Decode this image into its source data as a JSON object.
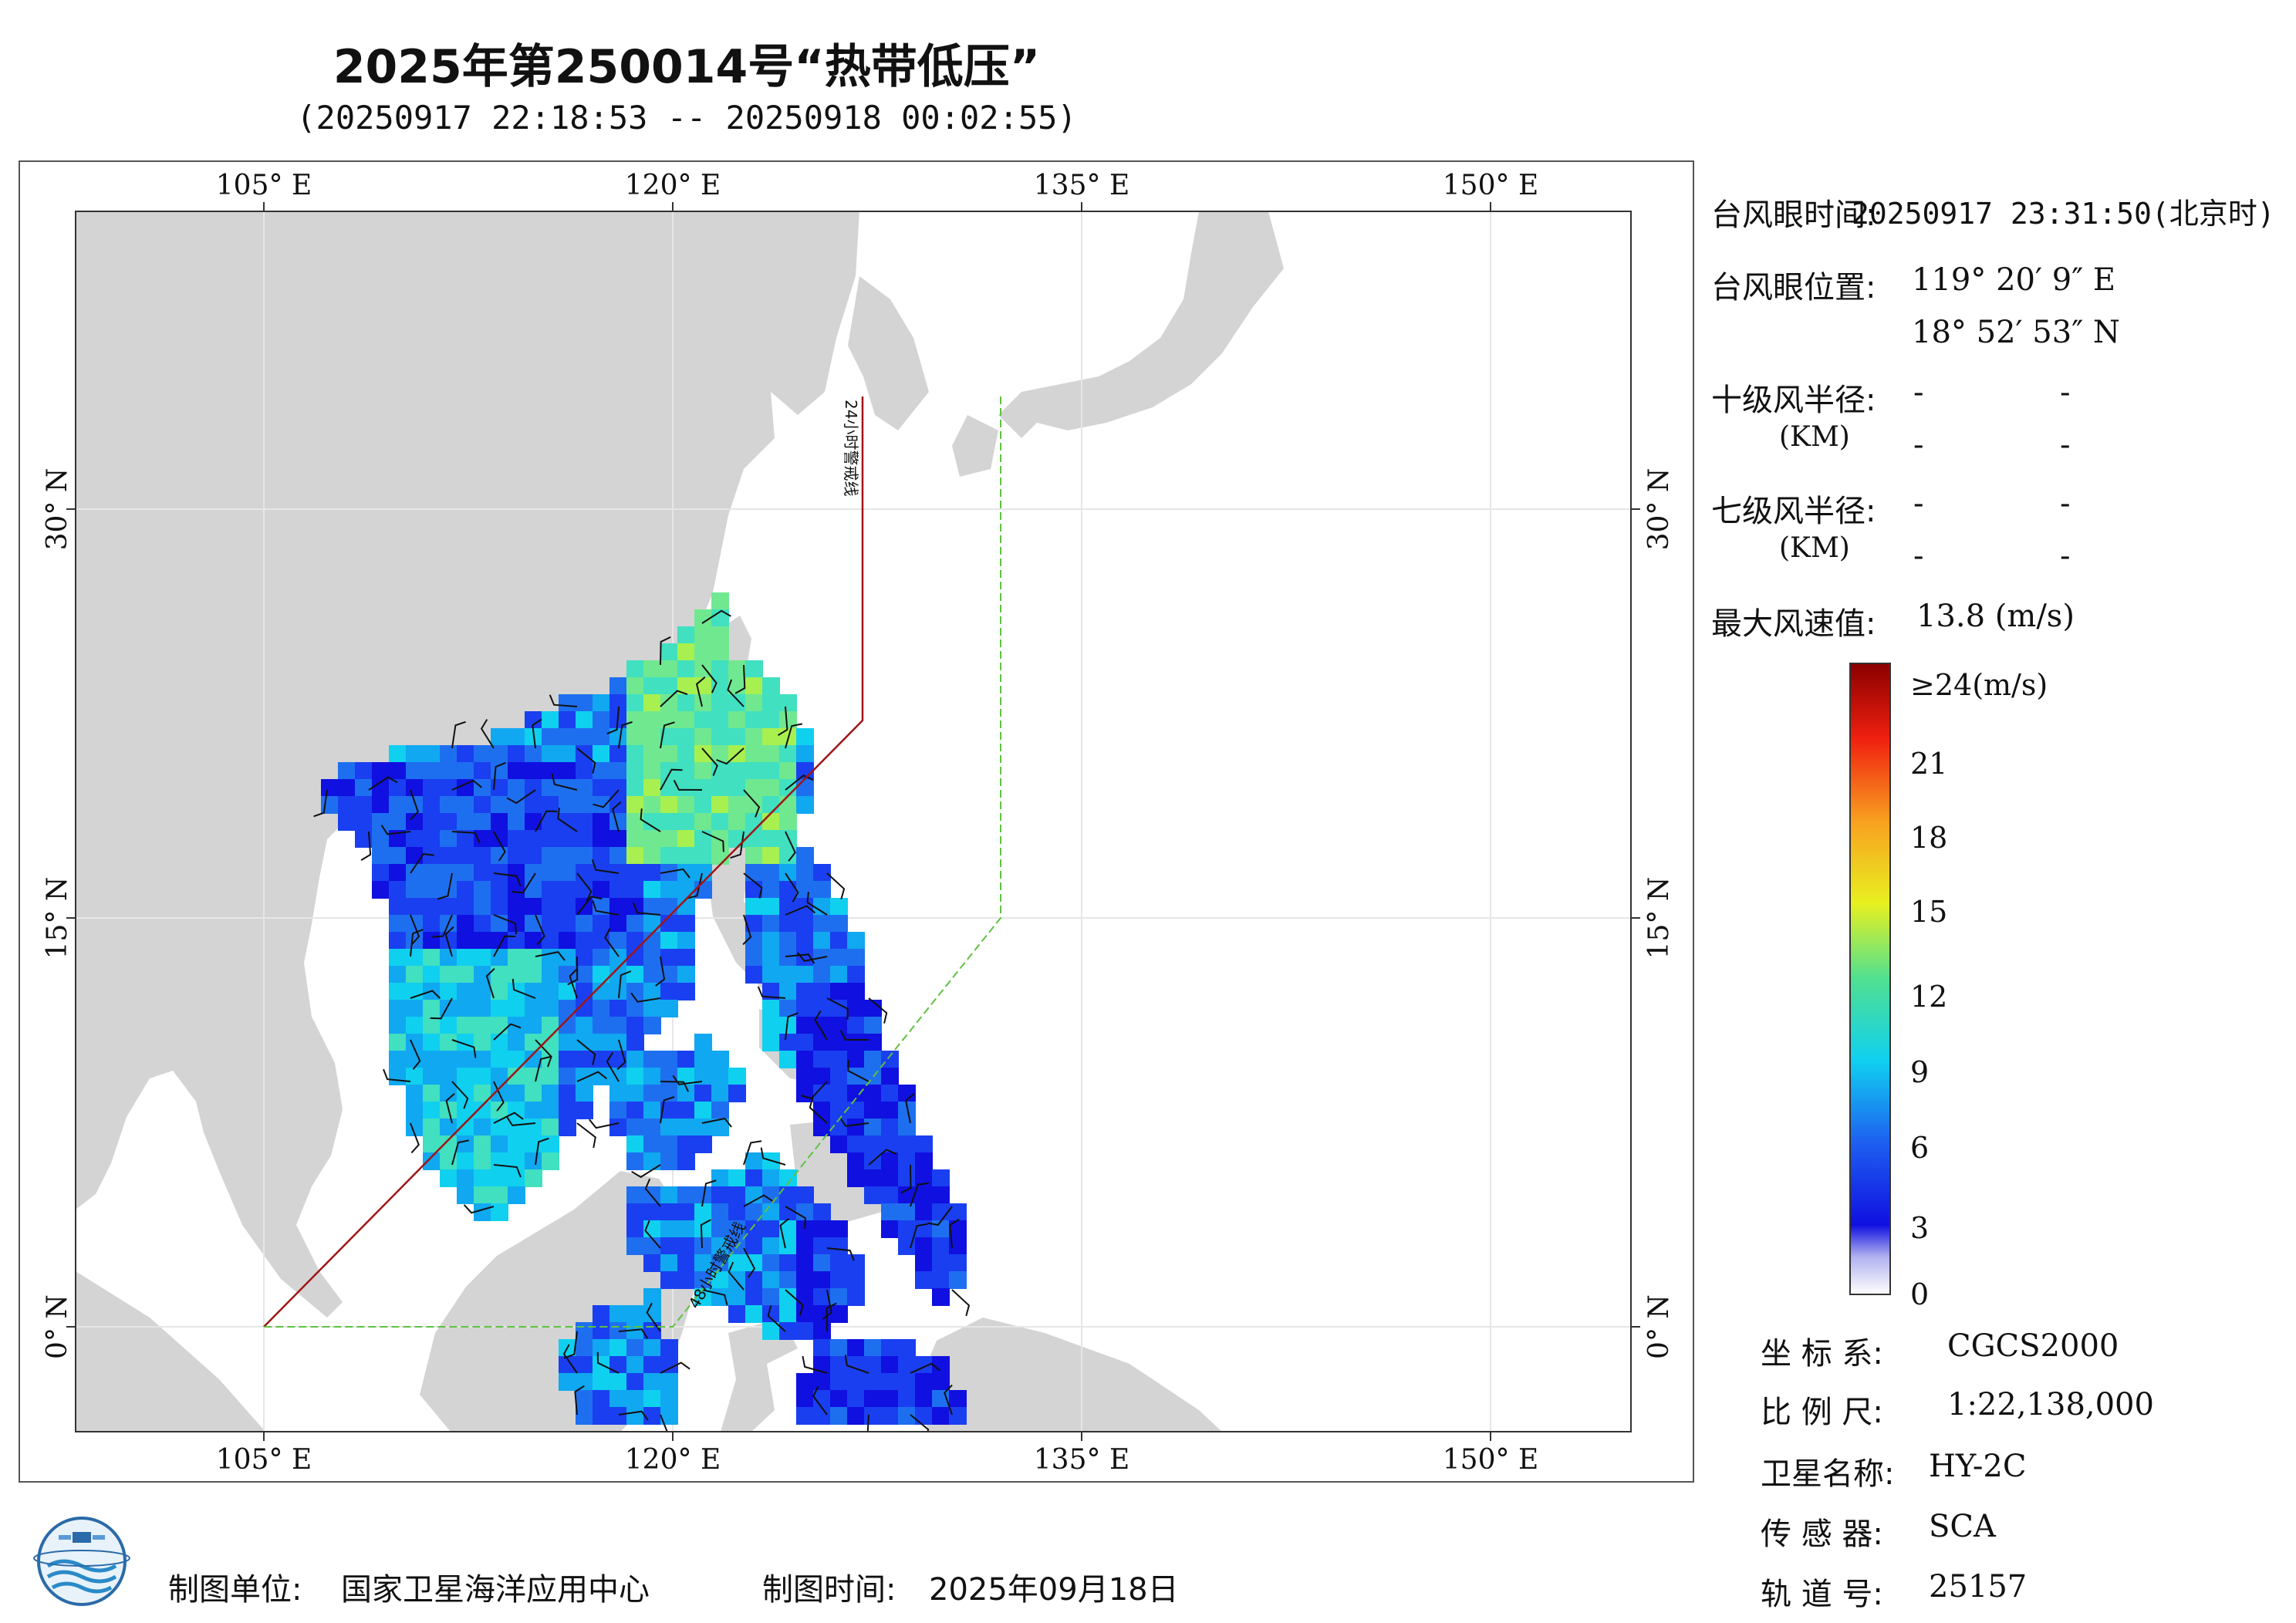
{
  "title": "2025年第250014号“热带低压”",
  "subtitle": "(20250917 22:18:53 -- 20250918 00:02:55)",
  "map": {
    "lon_ticks": [
      "105° E",
      "120° E",
      "135° E",
      "150° E"
    ],
    "lat_ticks": [
      "30° N",
      "15° N",
      "0° N"
    ],
    "line_24h_label": "24小时警戒线",
    "line_48h_label": "48小时警戒线"
  },
  "info": {
    "eye_time_label": "台风眼时间:",
    "eye_time_value": "20250917 23:31:50(北京时)",
    "eye_pos_label": "台风眼位置:",
    "eye_lon": "119° 20′ 9″ E",
    "eye_lat": "18° 52′ 53″ N",
    "r10_label": "十级风半径:",
    "r7_label": "七级风半径:",
    "km_label": "(KM)",
    "dash": "-",
    "max_wind_label": "最大风速值:",
    "max_wind_value": "13.8  (m/s)",
    "coord_label": "坐 标 系:",
    "coord_value": "CGCS2000",
    "scale_label": "比 例 尺:",
    "scale_value": "1:22,138,000",
    "sat_label": "卫星名称:",
    "sat_value": "HY-2C",
    "sensor_label": "传 感 器:",
    "sensor_value": "SCA",
    "orbit_label": "轨 道 号:",
    "orbit_value": "25157"
  },
  "colorbar": {
    "labels": [
      "≥24(m/s)",
      "21",
      "18",
      "15",
      "12",
      "9",
      "6",
      "3",
      "0"
    ]
  },
  "footer": {
    "unit_label": "制图单位:",
    "unit_value": "国家卫星海洋应用中心",
    "time_label": "制图时间:",
    "time_value": "2025年09月18日"
  }
}
